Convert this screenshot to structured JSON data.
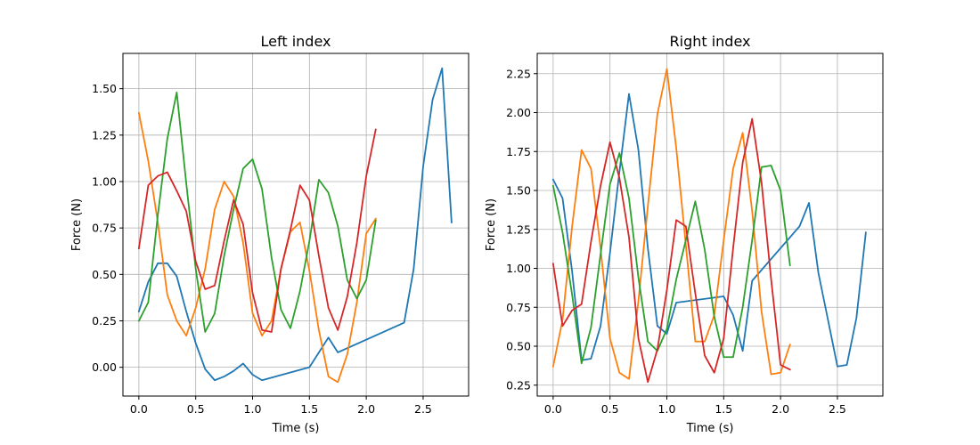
{
  "chart_data": [
    {
      "type": "line",
      "title": "Left index",
      "xlabel": "Time (s)",
      "ylabel": "Force (N)",
      "xlim": [
        -0.14,
        2.9
      ],
      "ylim": [
        -0.155,
        1.69
      ],
      "xticks": [
        0.0,
        0.5,
        1.0,
        1.5,
        2.0,
        2.5
      ],
      "xtick_labels": [
        "0.0",
        "0.5",
        "1.0",
        "1.5",
        "2.0",
        "2.5"
      ],
      "yticks": [
        0.0,
        0.25,
        0.5,
        0.75,
        1.0,
        1.25,
        1.5
      ],
      "ytick_labels": [
        "0.00",
        "0.25",
        "0.50",
        "0.75",
        "1.00",
        "1.25",
        "1.50"
      ],
      "grid": true,
      "colors": [
        "#1f77b4",
        "#ff7f0e",
        "#2ca02c",
        "#d62728"
      ],
      "series": [
        {
          "x": [
            0.0,
            0.083,
            0.167,
            0.25,
            0.333,
            0.417,
            0.5,
            0.583,
            0.667,
            0.75,
            0.833,
            0.917,
            1.0,
            1.083,
            1.5,
            1.667,
            1.75,
            2.333,
            2.417,
            2.5,
            2.583,
            2.667,
            2.75
          ],
          "values": [
            0.3,
            0.46,
            0.56,
            0.56,
            0.49,
            0.3,
            0.13,
            -0.01,
            -0.07,
            -0.05,
            -0.02,
            0.02,
            -0.04,
            -0.07,
            0.0,
            0.16,
            0.08,
            0.24,
            0.53,
            1.08,
            1.44,
            1.61,
            0.78
          ]
        },
        {
          "x": [
            0.0,
            0.083,
            0.167,
            0.25,
            0.333,
            0.417,
            0.5,
            0.583,
            0.667,
            0.75,
            0.833,
            0.917,
            1.0,
            1.083,
            1.167,
            1.25,
            1.333,
            1.417,
            1.5,
            1.583,
            1.667,
            1.75,
            1.833,
            1.917,
            2.0,
            2.083
          ],
          "values": [
            1.37,
            1.11,
            0.78,
            0.39,
            0.25,
            0.17,
            0.32,
            0.53,
            0.85,
            1.0,
            0.92,
            0.67,
            0.29,
            0.17,
            0.25,
            0.53,
            0.73,
            0.78,
            0.52,
            0.2,
            -0.05,
            -0.08,
            0.07,
            0.35,
            0.72,
            0.8
          ]
        },
        {
          "x": [
            0.0,
            0.083,
            0.167,
            0.25,
            0.333,
            0.417,
            0.5,
            0.583,
            0.667,
            0.75,
            0.833,
            0.917,
            1.0,
            1.083,
            1.167,
            1.25,
            1.333,
            1.417,
            1.5,
            1.583,
            1.667,
            1.75,
            1.833,
            1.917,
            2.0,
            2.083
          ],
          "values": [
            0.25,
            0.35,
            0.82,
            1.23,
            1.48,
            0.99,
            0.53,
            0.19,
            0.29,
            0.6,
            0.85,
            1.07,
            1.12,
            0.96,
            0.59,
            0.31,
            0.21,
            0.41,
            0.68,
            1.01,
            0.94,
            0.76,
            0.47,
            0.37,
            0.47,
            0.79
          ]
        },
        {
          "x": [
            0.0,
            0.083,
            0.167,
            0.25,
            0.333,
            0.417,
            0.5,
            0.583,
            0.667,
            0.75,
            0.833,
            0.917,
            1.0,
            1.083,
            1.167,
            1.25,
            1.333,
            1.417,
            1.5,
            1.583,
            1.667,
            1.75,
            1.833,
            1.917,
            2.0,
            2.083
          ],
          "values": [
            0.64,
            0.98,
            1.03,
            1.05,
            0.95,
            0.84,
            0.57,
            0.42,
            0.44,
            0.68,
            0.9,
            0.77,
            0.4,
            0.2,
            0.19,
            0.53,
            0.74,
            0.98,
            0.9,
            0.6,
            0.32,
            0.2,
            0.38,
            0.67,
            1.03,
            1.28
          ]
        }
      ]
    },
    {
      "type": "line",
      "title": "Right index",
      "xlabel": "Time (s)",
      "ylabel": "Force (N)",
      "xlim": [
        -0.14,
        2.9
      ],
      "ylim": [
        0.18,
        2.38
      ],
      "xticks": [
        0.0,
        0.5,
        1.0,
        1.5,
        2.0,
        2.5
      ],
      "xtick_labels": [
        "0.0",
        "0.5",
        "1.0",
        "1.5",
        "2.0",
        "2.5"
      ],
      "yticks": [
        0.25,
        0.5,
        0.75,
        1.0,
        1.25,
        1.5,
        1.75,
        2.0,
        2.25
      ],
      "ytick_labels": [
        "0.25",
        "0.50",
        "0.75",
        "1.00",
        "1.25",
        "1.50",
        "1.75",
        "2.00",
        "2.25"
      ],
      "grid": true,
      "colors": [
        "#1f77b4",
        "#ff7f0e",
        "#2ca02c",
        "#d62728"
      ],
      "series": [
        {
          "x": [
            0.0,
            0.083,
            0.167,
            0.25,
            0.333,
            0.417,
            0.5,
            0.583,
            0.667,
            0.75,
            0.833,
            0.917,
            1.0,
            1.083,
            1.5,
            1.583,
            1.667,
            1.75,
            2.167,
            2.25,
            2.333,
            2.417,
            2.5,
            2.583,
            2.667,
            2.75
          ],
          "values": [
            1.57,
            1.45,
            0.98,
            0.41,
            0.42,
            0.63,
            1.1,
            1.62,
            2.12,
            1.76,
            1.13,
            0.63,
            0.58,
            0.78,
            0.82,
            0.7,
            0.47,
            0.92,
            1.27,
            1.42,
            0.97,
            0.67,
            0.37,
            0.38,
            0.68,
            1.23
          ]
        },
        {
          "x": [
            0.0,
            0.083,
            0.167,
            0.25,
            0.333,
            0.417,
            0.5,
            0.583,
            0.667,
            0.75,
            0.833,
            0.917,
            1.0,
            1.083,
            1.167,
            1.25,
            1.333,
            1.417,
            1.5,
            1.583,
            1.667,
            1.75,
            1.833,
            1.917,
            2.0,
            2.083
          ],
          "values": [
            0.37,
            0.67,
            1.27,
            1.76,
            1.64,
            1.13,
            0.55,
            0.33,
            0.29,
            0.79,
            1.4,
            1.99,
            2.28,
            1.77,
            1.15,
            0.53,
            0.53,
            0.7,
            1.18,
            1.64,
            1.87,
            1.37,
            0.72,
            0.32,
            0.33,
            0.51
          ]
        },
        {
          "x": [
            0.0,
            0.083,
            0.167,
            0.25,
            0.333,
            0.417,
            0.5,
            0.583,
            0.667,
            0.75,
            0.833,
            0.917,
            1.0,
            1.083,
            1.167,
            1.25,
            1.333,
            1.417,
            1.5,
            1.583,
            1.667,
            1.75,
            1.833,
            1.917,
            2.0,
            2.083
          ],
          "values": [
            1.53,
            1.23,
            0.83,
            0.39,
            0.62,
            1.09,
            1.54,
            1.74,
            1.45,
            0.94,
            0.53,
            0.47,
            0.61,
            0.93,
            1.18,
            1.43,
            1.12,
            0.69,
            0.43,
            0.43,
            0.75,
            1.18,
            1.65,
            1.66,
            1.5,
            1.02
          ]
        },
        {
          "x": [
            0.0,
            0.083,
            0.167,
            0.25,
            0.333,
            0.417,
            0.5,
            0.583,
            0.667,
            0.75,
            0.833,
            0.917,
            1.0,
            1.083,
            1.167,
            1.25,
            1.333,
            1.417,
            1.5,
            1.583,
            1.667,
            1.75,
            1.833,
            1.917,
            2.0,
            2.083
          ],
          "values": [
            1.03,
            0.63,
            0.73,
            0.77,
            1.17,
            1.53,
            1.81,
            1.58,
            1.2,
            0.55,
            0.27,
            0.48,
            0.86,
            1.31,
            1.27,
            0.84,
            0.44,
            0.33,
            0.55,
            1.13,
            1.68,
            1.96,
            1.55,
            0.93,
            0.38,
            0.35
          ]
        }
      ]
    }
  ]
}
